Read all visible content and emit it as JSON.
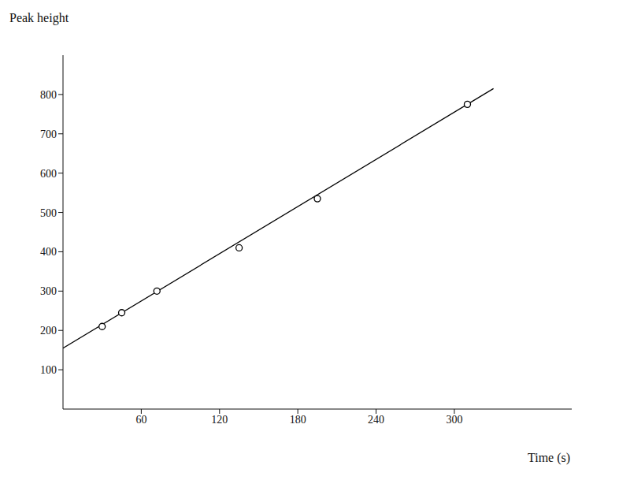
{
  "chart_data": {
    "type": "scatter",
    "x_label": "Time (s)",
    "y_label": "Peak height",
    "x": [
      30,
      45,
      72,
      135,
      195,
      310
    ],
    "values": [
      210,
      245,
      300,
      410,
      535,
      775
    ],
    "marker": "circle",
    "color": "#000000",
    "fit_line": {
      "x": [
        0,
        330
      ],
      "values": [
        155,
        815
      ],
      "line_style": "solid"
    },
    "xlim": [
      0,
      390
    ],
    "ylim": [
      0,
      900
    ],
    "xticks": [
      60,
      120,
      180,
      240,
      300
    ],
    "yticks": [
      100,
      200,
      300,
      400,
      500,
      600,
      700,
      800
    ],
    "grid": false
  }
}
